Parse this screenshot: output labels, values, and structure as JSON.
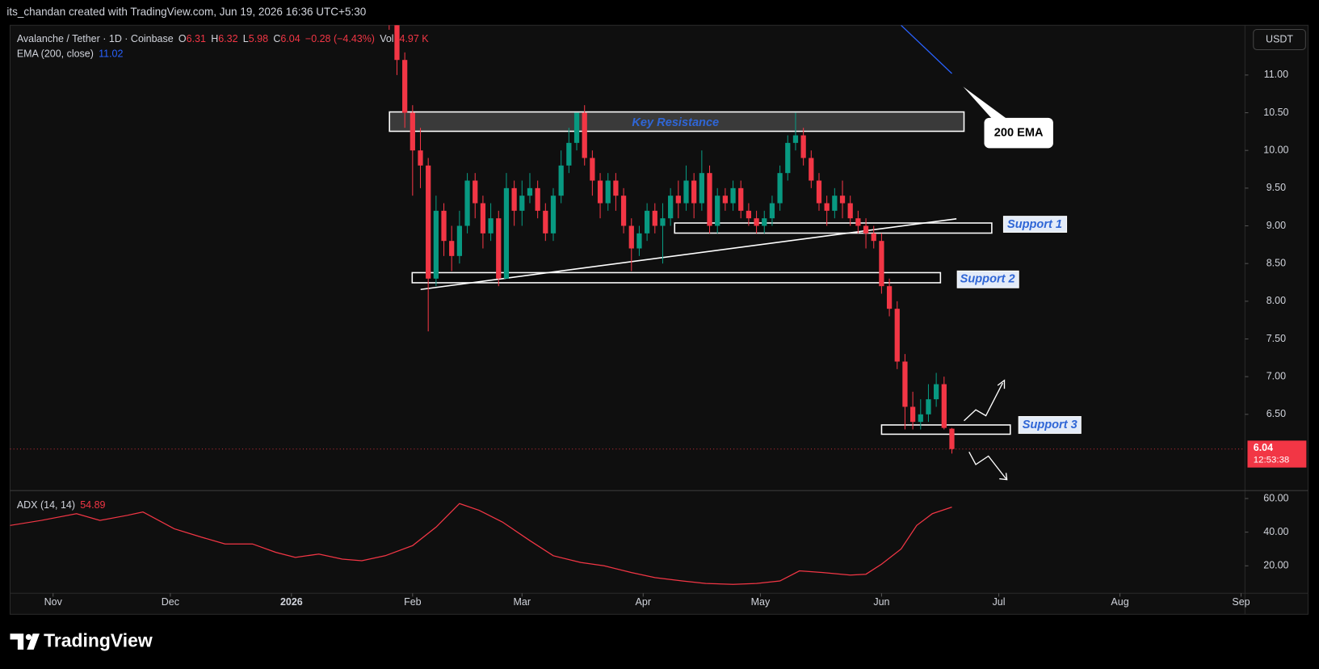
{
  "header": {
    "credit": "its_chandan created with TradingView.com, Jun 19, 2026 16:36 UTC+5:30",
    "symbol": "Avalanche / Tether · 1D · Coinbase",
    "ohlc_labels": [
      "O",
      "H",
      "L",
      "C"
    ],
    "change": "−0.28 (−4.43%)",
    "volume_label": "Vol",
    "volume": "14.97 K"
  },
  "annotations": {
    "key_resistance": "Key Resistance",
    "support_1": "Support 1",
    "support_2": "Support 2",
    "support_3": "Support 3",
    "ema_callout": "200 EMA"
  },
  "chart_data": [
    {
      "type": "candlestick",
      "currency": "USDT",
      "last_price_timer": "12:53:38",
      "up_color": "#089981",
      "down_color": "#f23645",
      "x": [
        86,
        88,
        90,
        92,
        94,
        96,
        98,
        100,
        102,
        104,
        106,
        108,
        110,
        112,
        114,
        116,
        118,
        120,
        122,
        124,
        126,
        128,
        130,
        132,
        134,
        136,
        138,
        140,
        142,
        144,
        146,
        148,
        150,
        152,
        154,
        156,
        158,
        160,
        162,
        164,
        166,
        168,
        170,
        172,
        174,
        176,
        178,
        180,
        182,
        184,
        186,
        188,
        190,
        192,
        194,
        196,
        198,
        200,
        202,
        204,
        206,
        208,
        210,
        212,
        214,
        216,
        218,
        220,
        222,
        224,
        226,
        228,
        230
      ],
      "open": [
        12.2,
        11.8,
        11.2,
        10.5,
        10.0,
        9.8,
        8.3,
        9.2,
        8.8,
        8.6,
        9.0,
        9.6,
        9.3,
        8.9,
        9.1,
        8.3,
        9.5,
        9.2,
        9.4,
        9.5,
        9.2,
        8.9,
        9.4,
        9.8,
        10.1,
        10.5,
        9.9,
        9.6,
        9.3,
        9.6,
        9.4,
        9.0,
        8.7,
        8.9,
        9.2,
        9.0,
        9.1,
        9.4,
        9.3,
        9.6,
        9.3,
        9.7,
        9.0,
        9.4,
        9.3,
        9.5,
        9.2,
        9.1,
        9.0,
        9.1,
        9.3,
        9.7,
        10.1,
        10.2,
        9.9,
        9.6,
        9.3,
        9.2,
        9.4,
        9.3,
        9.1,
        9.0,
        8.9,
        8.8,
        8.2,
        7.9,
        7.2,
        6.6,
        6.4,
        6.5,
        6.7,
        6.9,
        6.31
      ],
      "high": [
        12.4,
        11.9,
        11.3,
        10.6,
        10.3,
        9.9,
        9.4,
        9.3,
        9.0,
        9.2,
        9.7,
        9.7,
        9.4,
        9.3,
        9.2,
        9.7,
        9.6,
        9.6,
        9.7,
        9.6,
        9.3,
        9.5,
        10.0,
        10.3,
        10.5,
        10.6,
        10.0,
        9.7,
        9.7,
        9.7,
        9.5,
        9.1,
        9.0,
        9.3,
        9.3,
        9.3,
        9.5,
        9.6,
        9.8,
        9.7,
        10.0,
        9.8,
        9.5,
        9.5,
        9.6,
        9.6,
        9.3,
        9.2,
        9.2,
        9.4,
        9.8,
        10.2,
        10.5,
        10.3,
        10.0,
        9.7,
        9.4,
        9.5,
        9.6,
        9.4,
        9.2,
        9.1,
        9.0,
        8.9,
        8.3,
        8.0,
        7.3,
        6.8,
        6.7,
        6.9,
        7.05,
        7.0,
        6.32
      ],
      "low": [
        11.6,
        11.0,
        10.3,
        9.4,
        9.5,
        7.6,
        8.2,
        8.6,
        8.4,
        8.5,
        8.9,
        9.1,
        8.7,
        8.8,
        8.2,
        8.3,
        9.0,
        9.0,
        9.3,
        9.1,
        8.8,
        8.8,
        9.3,
        9.7,
        10.0,
        9.8,
        9.4,
        9.1,
        9.2,
        9.2,
        8.9,
        8.4,
        8.6,
        8.8,
        8.9,
        8.5,
        9.0,
        9.1,
        9.2,
        9.1,
        9.2,
        8.9,
        8.9,
        9.2,
        9.2,
        9.1,
        9.0,
        8.9,
        8.9,
        9.0,
        9.2,
        9.6,
        10.0,
        9.8,
        9.5,
        9.2,
        9.0,
        9.1,
        9.1,
        9.0,
        8.9,
        8.7,
        8.7,
        8.1,
        7.8,
        7.1,
        6.3,
        6.3,
        6.3,
        6.4,
        6.6,
        6.3,
        5.98
      ],
      "close": [
        11.8,
        11.2,
        10.5,
        10.0,
        9.8,
        8.3,
        9.2,
        8.8,
        8.6,
        9.0,
        9.6,
        9.3,
        8.9,
        9.1,
        8.3,
        9.5,
        9.2,
        9.4,
        9.5,
        9.2,
        8.9,
        9.4,
        9.8,
        10.1,
        10.5,
        9.9,
        9.6,
        9.3,
        9.6,
        9.4,
        9.0,
        8.7,
        8.9,
        9.2,
        9.0,
        9.1,
        9.4,
        9.3,
        9.6,
        9.3,
        9.7,
        9.0,
        9.4,
        9.3,
        9.5,
        9.2,
        9.1,
        9.0,
        9.1,
        9.3,
        9.7,
        10.1,
        10.2,
        9.9,
        9.6,
        9.3,
        9.2,
        9.4,
        9.3,
        9.1,
        9.0,
        8.9,
        8.8,
        8.2,
        7.9,
        7.2,
        6.6,
        6.4,
        6.5,
        6.7,
        6.9,
        6.32,
        6.04
      ],
      "series": [
        {
          "name": "EMA (200, close)",
          "color": "#2962ff",
          "x": [
            217,
            230
          ],
          "values": [
            11.66,
            11.02
          ]
        }
      ],
      "xlim": [
        -11,
        305
      ],
      "xticks": [
        {
          "value": 0,
          "label": "Nov"
        },
        {
          "value": 30,
          "label": "Dec"
        },
        {
          "value": 61,
          "label": "2026"
        },
        {
          "value": 92,
          "label": "Feb"
        },
        {
          "value": 120,
          "label": "Mar"
        },
        {
          "value": 151,
          "label": "Apr"
        },
        {
          "value": 181,
          "label": "May"
        },
        {
          "value": 212,
          "label": "Jun"
        },
        {
          "value": 242,
          "label": "Jul"
        },
        {
          "value": 273,
          "label": "Aug"
        },
        {
          "value": 304,
          "label": "Sep"
        }
      ],
      "ylim": [
        5.5,
        11.66
      ],
      "yticks": [
        {
          "value": 6.5,
          "label": "6.50"
        },
        {
          "value": 7,
          "label": "7.00"
        },
        {
          "value": 7.5,
          "label": "7.50"
        },
        {
          "value": 8,
          "label": "8.00"
        },
        {
          "value": 8.5,
          "label": "8.50"
        },
        {
          "value": 9,
          "label": "9.00"
        },
        {
          "value": 9.5,
          "label": "9.50"
        },
        {
          "value": 10,
          "label": "10.00"
        },
        {
          "value": 10.5,
          "label": "10.50"
        },
        {
          "value": 11,
          "label": "11.00"
        }
      ]
    },
    {
      "type": "line",
      "name": "ADX (14, 14)",
      "color": "#f23645",
      "x": [
        -11,
        -3,
        6,
        12,
        19,
        23,
        31,
        38,
        44,
        51,
        57,
        62,
        68,
        74,
        79,
        85,
        92,
        98,
        104,
        109,
        115,
        122,
        128,
        135,
        141,
        148,
        154,
        161,
        167,
        174,
        180,
        186,
        191,
        197,
        204,
        208,
        212,
        217,
        221,
        225,
        230
      ],
      "values": [
        44,
        47,
        51,
        47,
        50,
        52,
        42,
        37,
        33,
        33,
        28,
        25,
        27,
        24,
        23,
        26,
        32,
        43,
        57,
        53,
        46,
        35,
        26,
        22,
        20,
        16,
        13,
        11,
        9.5,
        9,
        9.5,
        11,
        17,
        16,
        14.5,
        15,
        21,
        30,
        44,
        51,
        54.89
      ],
      "ylim": [
        3.7,
        63.7
      ],
      "yticks": [
        {
          "value": 20,
          "label": "20.00"
        },
        {
          "value": 40,
          "label": "40.00"
        },
        {
          "value": 60,
          "label": "60.00"
        }
      ]
    }
  ],
  "footer": {
    "brand": "TradingView"
  }
}
